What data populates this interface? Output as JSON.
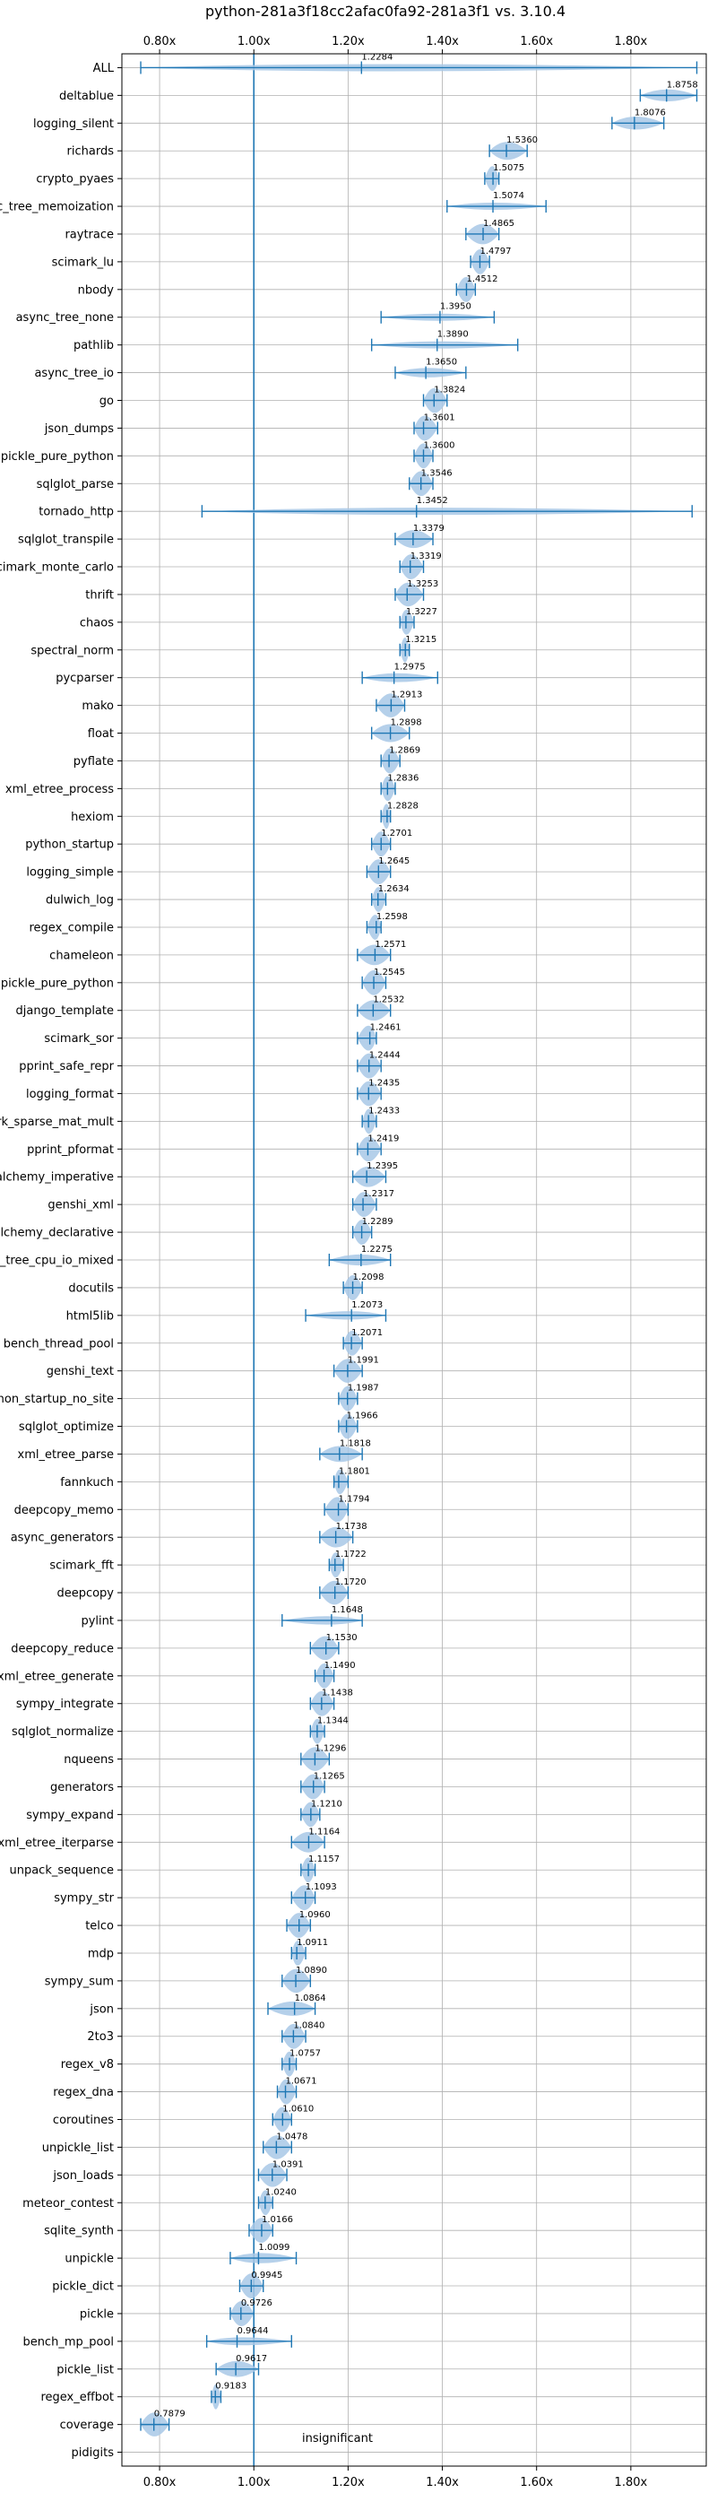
{
  "chart_data": {
    "type": "violin",
    "title": "python-281a3f18cc2afac0fa92-281a3f1 vs. 3.10.4",
    "x_tick_labels": [
      "0.80x",
      "1.00x",
      "1.20x",
      "1.40x",
      "1.60x",
      "1.80x"
    ],
    "x_ticks": [
      0.8,
      1.0,
      1.2,
      1.4,
      1.6,
      1.8
    ],
    "xlim": [
      0.72,
      1.96
    ],
    "reference_line": 1.0,
    "grid": true,
    "colors": {
      "line": "#1f77b4",
      "fill": "#a8c8e6",
      "grid": "#b0b0b0"
    },
    "annotation": "insignificant",
    "categories": [
      "ALL",
      "deltablue",
      "logging_silent",
      "richards",
      "crypto_pyaes",
      "async_tree_memoization",
      "raytrace",
      "scimark_lu",
      "nbody",
      "async_tree_none",
      "pathlib",
      "async_tree_io",
      "go",
      "json_dumps",
      "pickle_pure_python",
      "sqlglot_parse",
      "tornado_http",
      "sqlglot_transpile",
      "scimark_monte_carlo",
      "thrift",
      "chaos",
      "spectral_norm",
      "pycparser",
      "mako",
      "float",
      "pyflate",
      "xml_etree_process",
      "hexiom",
      "python_startup",
      "logging_simple",
      "dulwich_log",
      "regex_compile",
      "chameleon",
      "unpickle_pure_python",
      "django_template",
      "scimark_sor",
      "pprint_safe_repr",
      "logging_format",
      "scimark_sparse_mat_mult",
      "pprint_pformat",
      "sqlalchemy_imperative",
      "genshi_xml",
      "sqlalchemy_declarative",
      "async_tree_cpu_io_mixed",
      "docutils",
      "html5lib",
      "bench_thread_pool",
      "genshi_text",
      "python_startup_no_site",
      "sqlglot_optimize",
      "xml_etree_parse",
      "fannkuch",
      "deepcopy_memo",
      "async_generators",
      "scimark_fft",
      "deepcopy",
      "pylint",
      "deepcopy_reduce",
      "xml_etree_generate",
      "sympy_integrate",
      "sqlglot_normalize",
      "nqueens",
      "generators",
      "sympy_expand",
      "xml_etree_iterparse",
      "unpack_sequence",
      "sympy_str",
      "telco",
      "mdp",
      "sympy_sum",
      "json",
      "2to3",
      "regex_v8",
      "regex_dna",
      "coroutines",
      "unpickle_list",
      "json_loads",
      "meteor_contest",
      "sqlite_synth",
      "unpickle",
      "pickle_dict",
      "pickle",
      "bench_mp_pool",
      "pickle_list",
      "regex_effbot",
      "coverage",
      "pidigits"
    ],
    "values": [
      1.2284,
      1.8758,
      1.8076,
      1.536,
      1.5075,
      1.5074,
      1.4865,
      1.4797,
      1.4512,
      1.395,
      1.389,
      1.365,
      1.3824,
      1.3601,
      1.36,
      1.3546,
      1.3452,
      1.3379,
      1.3319,
      1.3253,
      1.3227,
      1.3215,
      1.2975,
      1.2913,
      1.2898,
      1.2869,
      1.2836,
      1.2828,
      1.2701,
      1.2645,
      1.2634,
      1.2598,
      1.2571,
      1.2545,
      1.2532,
      1.2461,
      1.2444,
      1.2435,
      1.2433,
      1.2419,
      1.2395,
      1.2317,
      1.2289,
      1.2275,
      1.2098,
      1.2073,
      1.2071,
      1.1991,
      1.1987,
      1.1966,
      1.1818,
      1.1801,
      1.1794,
      1.1738,
      1.1722,
      1.172,
      1.1648,
      1.153,
      1.149,
      1.1438,
      1.1344,
      1.1296,
      1.1265,
      1.121,
      1.1164,
      1.1157,
      1.1093,
      1.096,
      1.0911,
      1.089,
      1.0864,
      1.084,
      1.0757,
      1.0671,
      1.061,
      1.0478,
      1.0391,
      1.024,
      1.0166,
      1.0099,
      0.9945,
      0.9726,
      0.9644,
      0.9617,
      0.9183,
      0.7879,
      null
    ],
    "value_labels": [
      "1.2284",
      "1.8758",
      "1.8076",
      "1.5360",
      "1.5075",
      "1.5074",
      "1.4865",
      "1.4797",
      "1.4512",
      "1.3950",
      "1.3890",
      "1.3650",
      "1.3824",
      "1.3601",
      "1.3600",
      "1.3546",
      "1.3452",
      "1.3379",
      "1.3319",
      "1.3253",
      "1.3227",
      "1.3215",
      "1.2975",
      "1.2913",
      "1.2898",
      "1.2869",
      "1.2836",
      "1.2828",
      "1.2701",
      "1.2645",
      "1.2634",
      "1.2598",
      "1.2571",
      "1.2545",
      "1.2532",
      "1.2461",
      "1.2444",
      "1.2435",
      "1.2433",
      "1.2419",
      "1.2395",
      "1.2317",
      "1.2289",
      "1.2275",
      "1.2098",
      "1.2073",
      "1.2071",
      "1.1991",
      "1.1987",
      "1.1966",
      "1.1818",
      "1.1801",
      "1.1794",
      "1.1738",
      "1.1722",
      "1.1720",
      "1.1648",
      "1.1530",
      "1.1490",
      "1.1438",
      "1.1344",
      "1.1296",
      "1.1265",
      "1.1210",
      "1.1164",
      "1.1157",
      "1.1093",
      "1.0960",
      "1.0911",
      "1.0890",
      "1.0864",
      "1.0840",
      "1.0757",
      "1.0671",
      "1.0610",
      "1.0478",
      "1.0391",
      "1.0240",
      "1.0166",
      "1.0099",
      "0.9945",
      "0.9726",
      "0.9644",
      "0.9617",
      "0.9183",
      "0.7879",
      ""
    ],
    "ranges": [
      [
        0.76,
        1.94
      ],
      [
        1.82,
        1.94
      ],
      [
        1.76,
        1.87
      ],
      [
        1.5,
        1.58
      ],
      [
        1.49,
        1.52
      ],
      [
        1.41,
        1.62
      ],
      [
        1.45,
        1.52
      ],
      [
        1.46,
        1.5
      ],
      [
        1.43,
        1.47
      ],
      [
        1.27,
        1.51
      ],
      [
        1.25,
        1.56
      ],
      [
        1.3,
        1.45
      ],
      [
        1.36,
        1.41
      ],
      [
        1.34,
        1.39
      ],
      [
        1.34,
        1.38
      ],
      [
        1.33,
        1.38
      ],
      [
        0.89,
        1.93
      ],
      [
        1.3,
        1.38
      ],
      [
        1.31,
        1.36
      ],
      [
        1.3,
        1.36
      ],
      [
        1.31,
        1.34
      ],
      [
        1.31,
        1.33
      ],
      [
        1.23,
        1.39
      ],
      [
        1.26,
        1.32
      ],
      [
        1.25,
        1.33
      ],
      [
        1.27,
        1.31
      ],
      [
        1.27,
        1.3
      ],
      [
        1.27,
        1.29
      ],
      [
        1.25,
        1.29
      ],
      [
        1.24,
        1.29
      ],
      [
        1.25,
        1.28
      ],
      [
        1.24,
        1.27
      ],
      [
        1.22,
        1.29
      ],
      [
        1.23,
        1.28
      ],
      [
        1.22,
        1.29
      ],
      [
        1.22,
        1.26
      ],
      [
        1.22,
        1.27
      ],
      [
        1.22,
        1.27
      ],
      [
        1.23,
        1.26
      ],
      [
        1.22,
        1.27
      ],
      [
        1.21,
        1.28
      ],
      [
        1.21,
        1.26
      ],
      [
        1.21,
        1.25
      ],
      [
        1.16,
        1.29
      ],
      [
        1.19,
        1.23
      ],
      [
        1.11,
        1.28
      ],
      [
        1.19,
        1.23
      ],
      [
        1.17,
        1.23
      ],
      [
        1.18,
        1.22
      ],
      [
        1.18,
        1.22
      ],
      [
        1.14,
        1.23
      ],
      [
        1.17,
        1.2
      ],
      [
        1.15,
        1.2
      ],
      [
        1.14,
        1.21
      ],
      [
        1.16,
        1.19
      ],
      [
        1.14,
        1.2
      ],
      [
        1.06,
        1.23
      ],
      [
        1.12,
        1.18
      ],
      [
        1.13,
        1.17
      ],
      [
        1.12,
        1.17
      ],
      [
        1.12,
        1.15
      ],
      [
        1.1,
        1.16
      ],
      [
        1.1,
        1.15
      ],
      [
        1.1,
        1.14
      ],
      [
        1.08,
        1.15
      ],
      [
        1.1,
        1.13
      ],
      [
        1.08,
        1.13
      ],
      [
        1.07,
        1.12
      ],
      [
        1.08,
        1.11
      ],
      [
        1.06,
        1.12
      ],
      [
        1.03,
        1.13
      ],
      [
        1.06,
        1.11
      ],
      [
        1.06,
        1.09
      ],
      [
        1.05,
        1.09
      ],
      [
        1.04,
        1.08
      ],
      [
        1.02,
        1.08
      ],
      [
        1.01,
        1.07
      ],
      [
        1.01,
        1.04
      ],
      [
        0.99,
        1.04
      ],
      [
        0.95,
        1.09
      ],
      [
        0.97,
        1.02
      ],
      [
        0.95,
        1.0
      ],
      [
        0.9,
        1.08
      ],
      [
        0.92,
        1.01
      ],
      [
        0.91,
        0.93
      ],
      [
        0.76,
        0.82
      ],
      null
    ]
  }
}
